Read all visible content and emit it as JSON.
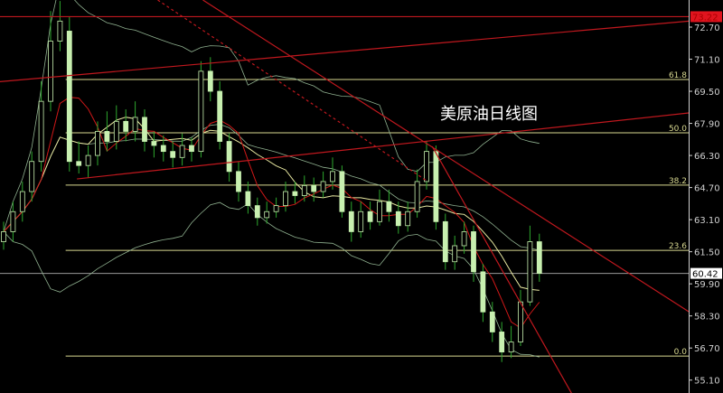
{
  "chart_data": {
    "type": "candlestick",
    "title": "美原油日线图",
    "y_axis": {
      "ticks": [
        "72.70",
        "71.10",
        "69.50",
        "67.90",
        "66.30",
        "64.70",
        "63.10",
        "61.50",
        "59.90",
        "58.30",
        "56.70",
        "55.10"
      ],
      "range": [
        54.6,
        73.9
      ],
      "position": "right"
    },
    "last_price": {
      "label": "60.42",
      "value": 60.42
    },
    "top_price": {
      "label": "73.22",
      "value": 73.22,
      "color": "#e0141e"
    },
    "fibonacci_levels": [
      {
        "label": "61.8",
        "price": 70.09
      },
      {
        "label": "50.0",
        "price": 67.43
      },
      {
        "label": "38.2",
        "price": 64.82
      },
      {
        "label": "23.6",
        "price": 61.57
      },
      {
        "label": "0.0",
        "price": 56.3
      }
    ],
    "fib_start_index": 6.6,
    "candles": [
      [
        62.0,
        63.0,
        61.6,
        62.5
      ],
      [
        62.5,
        64.0,
        62.0,
        63.5
      ],
      [
        63.5,
        65.0,
        63.0,
        64.5
      ],
      [
        64.5,
        66.5,
        64.0,
        66.0
      ],
      [
        66.0,
        70.0,
        65.5,
        69.0
      ],
      [
        69.0,
        73.5,
        68.5,
        72.0
      ],
      [
        72.0,
        74.0,
        71.5,
        73.0
      ],
      [
        72.5,
        73.2,
        65.5,
        66.0
      ],
      [
        66.0,
        67.0,
        65.4,
        65.8
      ],
      [
        65.8,
        66.8,
        65.2,
        66.3
      ],
      [
        66.3,
        68.0,
        65.8,
        67.5
      ],
      [
        67.5,
        68.5,
        66.5,
        67.0
      ],
      [
        67.0,
        68.8,
        66.6,
        68.0
      ],
      [
        68.0,
        68.6,
        67.0,
        67.5
      ],
      [
        67.5,
        69.0,
        67.0,
        68.2
      ],
      [
        68.2,
        68.6,
        66.5,
        67.0
      ],
      [
        67.0,
        67.5,
        66.2,
        66.8
      ],
      [
        66.8,
        67.3,
        66.0,
        66.5
      ],
      [
        66.5,
        67.0,
        65.7,
        66.2
      ],
      [
        66.2,
        67.4,
        65.8,
        66.8
      ],
      [
        66.8,
        67.2,
        66.0,
        66.5
      ],
      [
        66.5,
        71.0,
        66.2,
        70.5
      ],
      [
        70.5,
        71.2,
        69.0,
        69.5
      ],
      [
        69.5,
        70.0,
        66.6,
        67.0
      ],
      [
        67.0,
        67.4,
        65.0,
        65.5
      ],
      [
        65.5,
        66.0,
        64.0,
        64.5
      ],
      [
        64.5,
        65.0,
        63.4,
        63.8
      ],
      [
        63.8,
        64.2,
        62.8,
        63.2
      ],
      [
        63.2,
        64.0,
        62.9,
        63.5
      ],
      [
        63.5,
        64.2,
        63.2,
        63.8
      ],
      [
        63.8,
        65.0,
        63.5,
        64.5
      ],
      [
        64.5,
        65.0,
        63.9,
        64.3
      ],
      [
        64.3,
        65.3,
        64.0,
        64.8
      ],
      [
        64.8,
        65.2,
        64.0,
        64.5
      ],
      [
        64.5,
        65.5,
        64.2,
        65.0
      ],
      [
        65.0,
        66.2,
        64.6,
        65.5
      ],
      [
        65.5,
        65.8,
        63.2,
        63.5
      ],
      [
        63.5,
        64.0,
        62.0,
        62.5
      ],
      [
        62.5,
        64.0,
        62.2,
        63.5
      ],
      [
        63.5,
        64.0,
        62.6,
        63.0
      ],
      [
        63.0,
        64.6,
        62.8,
        64.0
      ],
      [
        64.0,
        64.6,
        63.0,
        63.5
      ],
      [
        63.5,
        64.0,
        62.4,
        62.8
      ],
      [
        62.8,
        64.0,
        62.5,
        63.5
      ],
      [
        63.5,
        65.6,
        63.2,
        65.0
      ],
      [
        65.0,
        67.0,
        64.6,
        66.5
      ],
      [
        66.5,
        66.8,
        62.6,
        63.0
      ],
      [
        63.0,
        63.4,
        60.6,
        61.0
      ],
      [
        61.0,
        62.3,
        60.6,
        61.8
      ],
      [
        61.8,
        63.0,
        61.4,
        62.5
      ],
      [
        62.5,
        62.8,
        60.0,
        60.5
      ],
      [
        60.5,
        60.9,
        58.0,
        58.5
      ],
      [
        58.5,
        59.0,
        57.0,
        57.5
      ],
      [
        57.5,
        58.0,
        56.0,
        56.5
      ],
      [
        56.5,
        57.8,
        56.2,
        57.0
      ],
      [
        57.0,
        59.6,
        56.8,
        59.0
      ],
      [
        59.0,
        62.8,
        58.8,
        62.0
      ],
      [
        62.0,
        62.4,
        60.0,
        60.42
      ]
    ],
    "trend_lines": [
      {
        "style": "solid",
        "color": "#c0181e",
        "from": [
          -0.4,
          73.22
        ],
        "to": [
          72.9,
          73.22
        ]
      },
      {
        "style": "solid",
        "color": "#c0181e",
        "from": [
          -0.4,
          69.98
        ],
        "to": [
          72.9,
          73.0
        ]
      },
      {
        "style": "solid",
        "color": "#c0181e",
        "from": [
          7.8,
          65.13
        ],
        "to": [
          72.9,
          68.42
        ]
      },
      {
        "style": "solid",
        "color": "#c0181e",
        "from": [
          21.2,
          74.05
        ],
        "to": [
          72.9,
          58.51
        ]
      },
      {
        "style": "dashed",
        "color": "#c0181e",
        "from": [
          16.4,
          74.05
        ],
        "to": [
          45.0,
          65.04
        ]
      },
      {
        "style": "solid",
        "color": "#c0181e",
        "from": [
          45.6,
          66.75
        ],
        "to": [
          61.2,
          53.8
        ]
      }
    ],
    "indicators": [
      "moving-average-5",
      "moving-average-10",
      "bollinger-bands-20"
    ],
    "colors": {
      "up": "#c8f0b0",
      "down": "#c8f0b0",
      "wick": "#2ea82e",
      "ma_fast": "#d01818",
      "ma_slow": "#e8e8a0",
      "bands": "#8fb08f",
      "fib": "#d8d890",
      "axis": "#d0d0d0",
      "background": "#000000"
    }
  }
}
